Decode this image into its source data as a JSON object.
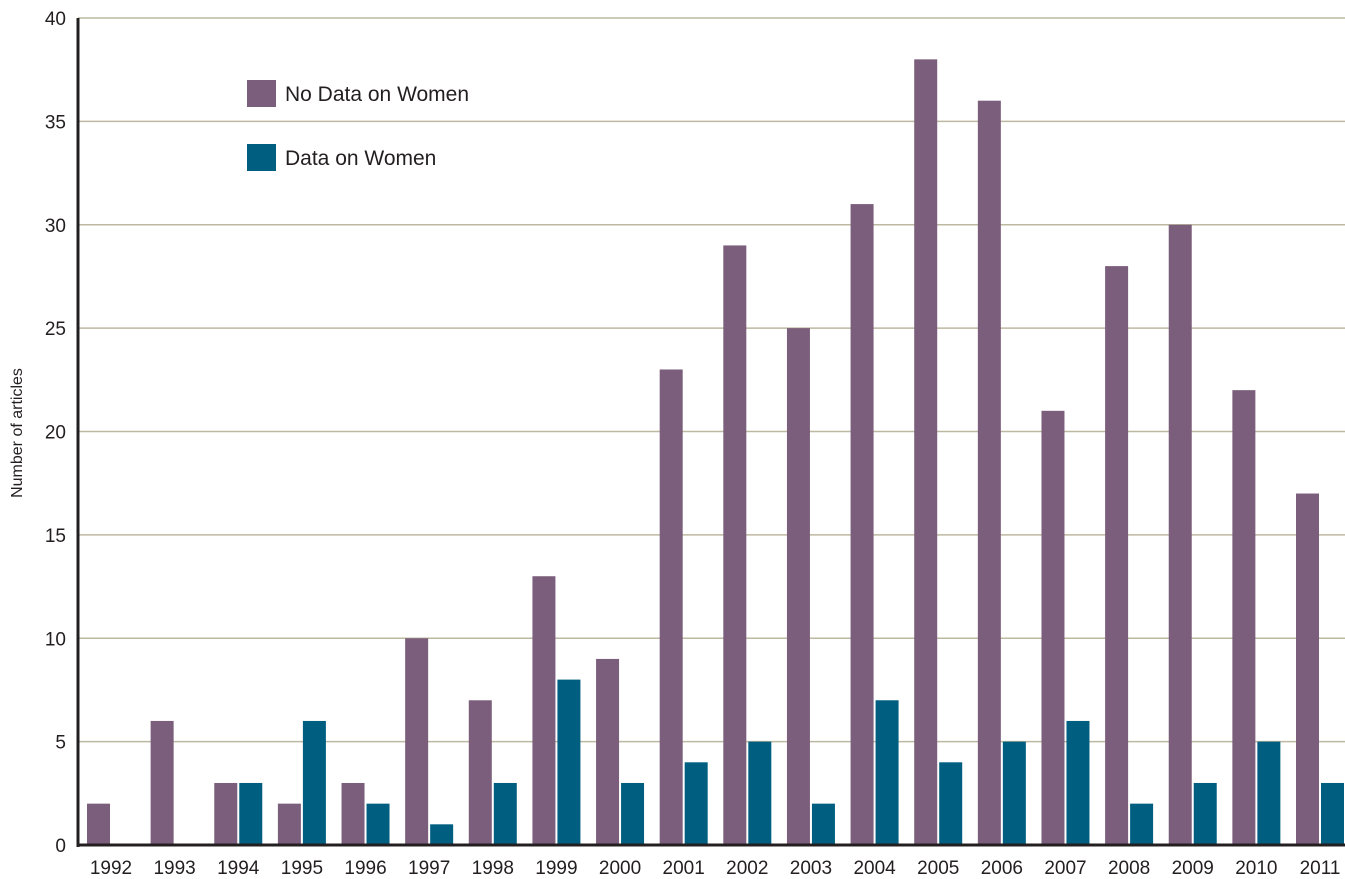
{
  "chart_data": {
    "type": "bar",
    "title": "",
    "xlabel": "",
    "ylabel": "Number of articles",
    "ylim": [
      0,
      40
    ],
    "yticks": [
      "0",
      "5",
      "10",
      "15",
      "20",
      "25",
      "30",
      "35",
      "40"
    ],
    "grid": true,
    "legend_position": "top-left",
    "categories": [
      "1992",
      "1993",
      "1994",
      "1995",
      "1996",
      "1997",
      "1998",
      "1999",
      "2000",
      "2001",
      "2002",
      "2003",
      "2004",
      "2005",
      "2006",
      "2007",
      "2008",
      "2009",
      "2010",
      "2011"
    ],
    "series": [
      {
        "name": "No Data on Women",
        "color": "#7b5e7b",
        "values": [
          2,
          6,
          3,
          2,
          3,
          10,
          7,
          13,
          9,
          23,
          29,
          25,
          31,
          38,
          36,
          21,
          28,
          30,
          22,
          17
        ]
      },
      {
        "name": "Data on Women",
        "color": "#005f80",
        "values": [
          0,
          0,
          3,
          6,
          2,
          1,
          3,
          8,
          3,
          4,
          5,
          2,
          7,
          4,
          5,
          6,
          2,
          3,
          5,
          3
        ]
      }
    ],
    "colors": {
      "grid": "#bdb8a0",
      "axis": "#231f20",
      "text": "#231f20"
    }
  }
}
